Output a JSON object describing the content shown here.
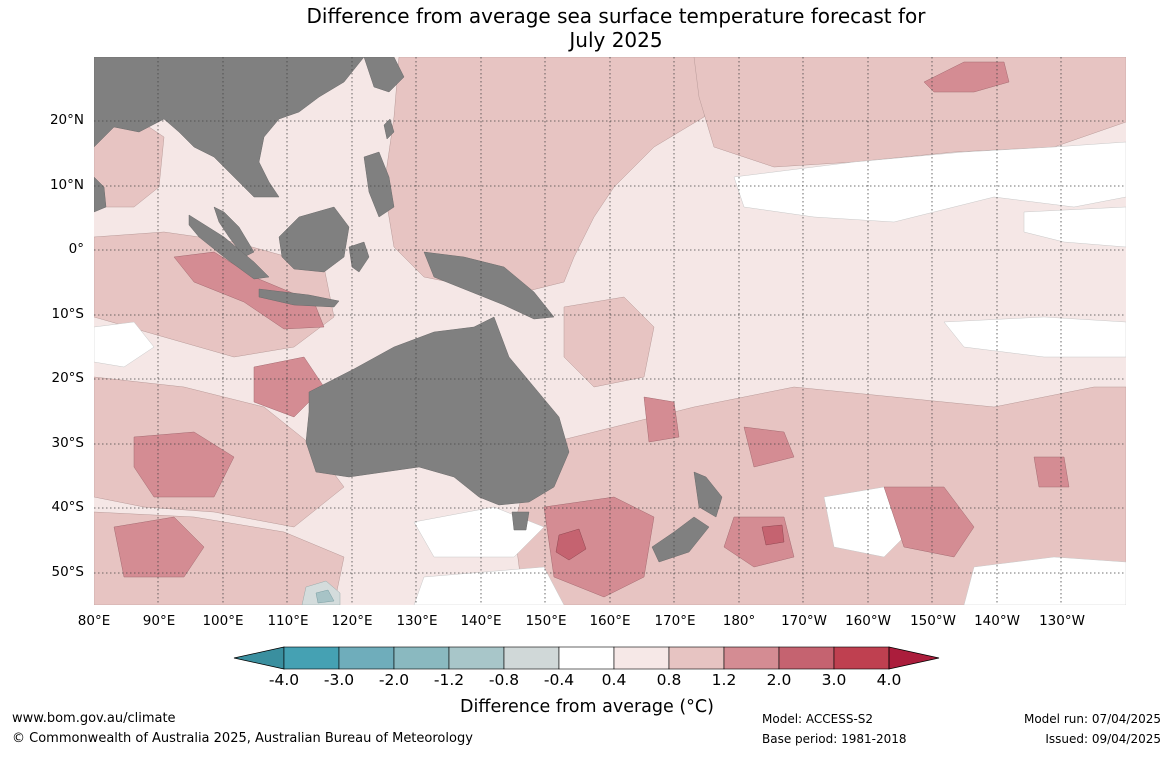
{
  "title_line1": "Difference from average sea surface temperature forecast for",
  "title_line2": "July 2025",
  "colors": {
    "land": "#808080",
    "ocean_neutral": "#ffffff",
    "warm_0_4_0_8": "#f5e7e6",
    "warm_0_8_1_2": "#e7c4c2",
    "warm_1_2_2_0": "#d48c93",
    "warm_2_0_3_0": "#c56370",
    "cool_neg04_neg08": "#d4dcdc",
    "cool_neg08_neg12": "#a7c3c6",
    "grid": "#444444"
  },
  "map": {
    "lon_range": [
      "80°E",
      "125°W"
    ],
    "lat_range": [
      "55°S",
      "30°N"
    ],
    "lat_ticks": [
      "20°N",
      "10°N",
      "0°",
      "10°S",
      "20°S",
      "30°S",
      "40°S",
      "50°S"
    ],
    "lon_ticks": [
      "80°E",
      "90°E",
      "100°E",
      "110°E",
      "120°E",
      "130°E",
      "140°E",
      "150°E",
      "160°E",
      "170°E",
      "180°",
      "170°W",
      "160°W",
      "150°W",
      "140°W",
      "130°W"
    ]
  },
  "colorbar": {
    "labels": [
      "-4.0",
      "-3.0",
      "-2.0",
      "-1.2",
      "-0.8",
      "-0.4",
      "0.4",
      "0.8",
      "1.2",
      "2.0",
      "3.0",
      "4.0"
    ],
    "colors": [
      "#45a1b3",
      "#6fadbb",
      "#8ab9c0",
      "#a8c6c9",
      "#d0d8d8",
      "#ffffff",
      "#f6e8e7",
      "#e7c4c2",
      "#d48c93",
      "#c56370",
      "#bf4050"
    ],
    "left_arrow_color": "#3a8f9f",
    "right_arrow_color": "#ab1d3c",
    "title": "Difference from average (°C)"
  },
  "footer": {
    "website": "www.bom.gov.au/climate",
    "copyright": "© Commonwealth of Australia 2025, Australian Bureau of Meteorology",
    "model": "Model: ACCESS-S2",
    "base_period": "Base period: 1981-2018",
    "model_run": "Model run: 07/04/2025",
    "issued": "Issued: 09/04/2025"
  }
}
